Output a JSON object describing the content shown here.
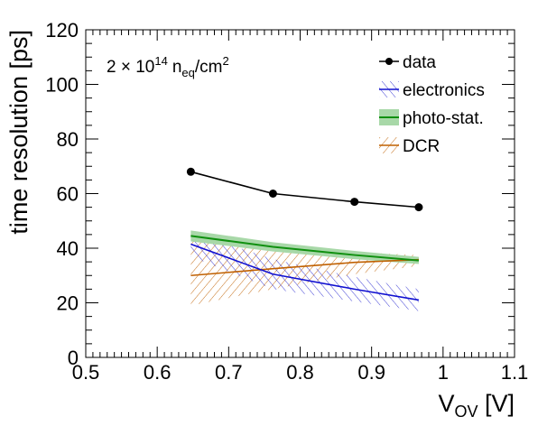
{
  "chart_data": {
    "type": "line",
    "annotation": {
      "prefix": "2 × 10",
      "exponent": "14",
      "n": "n",
      "n_sub": "eq",
      "unit": "/cm",
      "unit_exp": "2"
    },
    "ylabel": "time resolution [ps]",
    "xlabel": {
      "main": "V",
      "sub": "OV",
      "unit": " [V]"
    },
    "xlim": [
      0.5,
      1.1
    ],
    "ylim": [
      0,
      120
    ],
    "x_ticks": [
      "0.5",
      "0.6",
      "0.7",
      "0.8",
      "0.9",
      "1",
      "1.1"
    ],
    "y_ticks": [
      "0",
      "20",
      "40",
      "60",
      "80",
      "100",
      "120"
    ],
    "legend_position": "top-right",
    "series": [
      {
        "key": "data",
        "name": "data",
        "color": "#000000",
        "marker": "circle",
        "x": [
          0.647,
          0.762,
          0.876,
          0.966
        ],
        "y": [
          68,
          60,
          57,
          55
        ]
      },
      {
        "key": "electronics",
        "name": "electronics",
        "color": "#1010d0",
        "band": "hatch-blue",
        "x": [
          0.647,
          0.762,
          0.876,
          0.966
        ],
        "y": [
          41.5,
          30.5,
          25,
          21
        ],
        "y_low": [
          37,
          25,
          20.5,
          17
        ],
        "y_high": [
          46,
          36,
          29.5,
          25
        ]
      },
      {
        "key": "photo",
        "name": "photo-stat.",
        "color": "#109010",
        "band": "fill-green",
        "x": [
          0.647,
          0.762,
          0.876,
          0.966
        ],
        "y": [
          44.5,
          40.5,
          37.5,
          35.5
        ],
        "y_low": [
          42.5,
          38.8,
          36.0,
          34.2
        ],
        "y_high": [
          46.5,
          42.2,
          39.0,
          36.8
        ]
      },
      {
        "key": "dcr",
        "name": "DCR",
        "color": "#c06000",
        "band": "hatch-orange",
        "x": [
          0.647,
          0.762,
          0.876,
          0.966
        ],
        "y": [
          30,
          32.5,
          34.8,
          35.8
        ],
        "y_low": [
          19,
          25,
          30.5,
          33.5
        ],
        "y_high": [
          45,
          41,
          38.5,
          37.5
        ]
      }
    ]
  }
}
